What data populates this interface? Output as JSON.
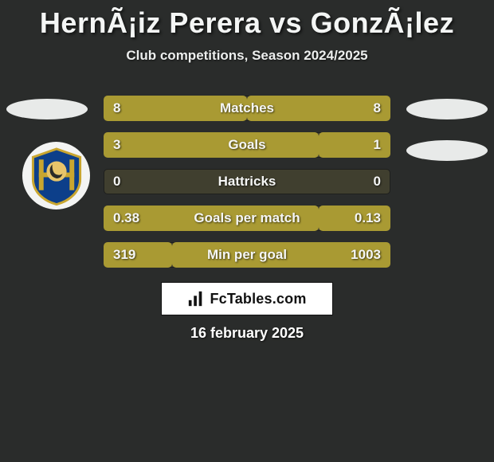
{
  "title": "HernÃ¡iz Perera vs GonzÃ¡lez",
  "subtitle": "Club competitions, Season 2024/2025",
  "date": "16 february 2025",
  "site": "FcTables.com",
  "colors": {
    "background": "#2a2c2b",
    "bar_track": "#403f2f",
    "bar_fill": "#a99a33",
    "text": "#f5f6f5",
    "side_shape": "#e8eae9"
  },
  "crest": {
    "shield_fill": "#0c3f8a",
    "shield_stroke": "#c9a62f",
    "bars_color": "#c9a62f",
    "head_bg": "#e7c46a",
    "head_fill": "#2a2a28"
  },
  "rows": [
    {
      "label": "Matches",
      "left_text": "8",
      "right_text": "8",
      "left_pct": 50,
      "right_pct": 50
    },
    {
      "label": "Goals",
      "left_text": "3",
      "right_text": "1",
      "left_pct": 75,
      "right_pct": 25
    },
    {
      "label": "Hattricks",
      "left_text": "0",
      "right_text": "0",
      "left_pct": 0,
      "right_pct": 0
    },
    {
      "label": "Goals per match",
      "left_text": "0.38",
      "right_text": "0.13",
      "left_pct": 75,
      "right_pct": 25
    },
    {
      "label": "Min per goal",
      "left_text": "319",
      "right_text": "1003",
      "left_pct": 24,
      "right_pct": 76
    }
  ]
}
